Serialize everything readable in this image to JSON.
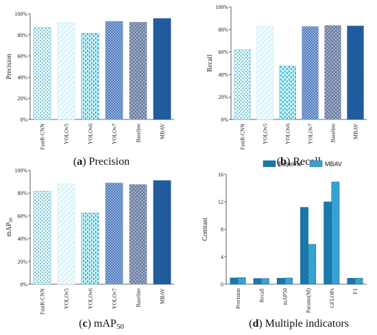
{
  "chart_data": [
    {
      "type": "bar",
      "caption_label": "(a)",
      "caption_text": "Precision",
      "ylabel": "Precision",
      "ylim": [
        0,
        100
      ],
      "yticks": [
        "0%",
        "20%",
        "40%",
        "60%",
        "80%",
        "100%"
      ],
      "categories": [
        "FastR-CNN",
        "YOLOv5",
        "YOLOv6",
        "YOLOv7",
        "Baseline",
        "MBAV"
      ],
      "values": [
        87,
        91.5,
        81.5,
        92.8,
        92,
        95.5
      ]
    },
    {
      "type": "bar",
      "caption_label": "(b)",
      "caption_text": "Recall",
      "ylabel": "Recall",
      "ylim": [
        0,
        100
      ],
      "yticks": [
        "0%",
        "20%",
        "40%",
        "60%",
        "80%",
        "100%"
      ],
      "categories": [
        "FastR-CNN",
        "YOLOv5",
        "YOLOv6",
        "YOLOv7",
        "Baseline",
        "MBAV"
      ],
      "values": [
        62,
        82.5,
        47.5,
        82.5,
        83.5,
        83
      ]
    },
    {
      "type": "bar",
      "caption_label": "(c)",
      "caption_text": "mAP",
      "caption_sub": "50",
      "ylabel": "mAP",
      "ylabel_sub": "50",
      "ylim": [
        0,
        100
      ],
      "yticks": [
        "0%",
        "20%",
        "40%",
        "60%",
        "80%",
        "100%"
      ],
      "categories": [
        "FastR-CNN",
        "YOLOv5",
        "YOLOv6",
        "YOLOv7",
        "Baseline",
        "MBAV"
      ],
      "values": [
        81.5,
        88,
        62.5,
        88.8,
        87.5,
        91
      ]
    },
    {
      "type": "bar",
      "caption_label": "(d)",
      "caption_text": "Multiple indicators",
      "ylabel": "Contrast",
      "ylim": [
        0,
        16
      ],
      "yticks": [
        "0",
        "4",
        "8",
        "12",
        "16"
      ],
      "categories": [
        "Precision",
        "Recall",
        "mAP50",
        "Params(M)",
        "GFLOPs",
        "F1"
      ],
      "legend_position": "top-right",
      "series": [
        {
          "name": "Baseline",
          "values": [
            0.92,
            0.84,
            0.88,
            11.2,
            12.0,
            0.87
          ]
        },
        {
          "name": "MBAV",
          "values": [
            0.96,
            0.83,
            0.91,
            5.8,
            14.9,
            0.89
          ]
        }
      ]
    }
  ],
  "colors": {
    "fastrcnn": "#5fc4d4",
    "yolov5": "#cdeef5",
    "yolov6": "#3dbbd6",
    "yolov7": "#6f95cc",
    "baseline": "#8899bb",
    "mbav": "#1e5ea8",
    "d_baseline": "#1a78aa",
    "d_mbav": "#3aa8d8"
  }
}
